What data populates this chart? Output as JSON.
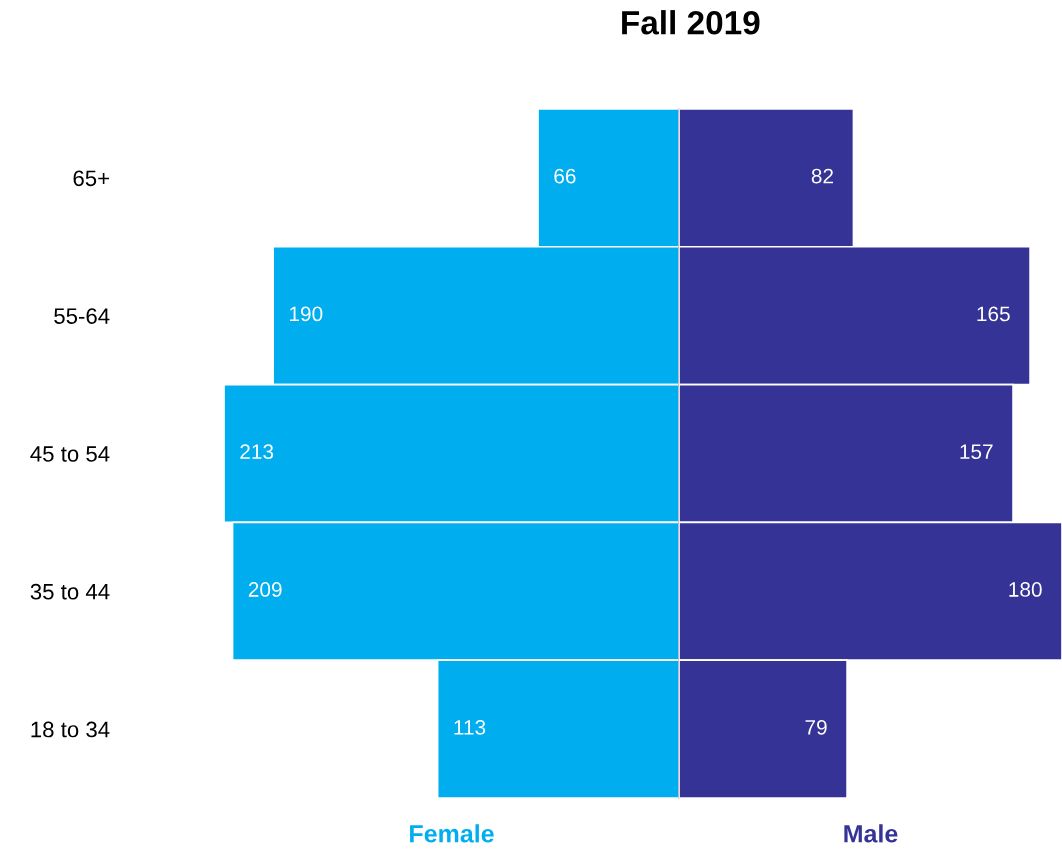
{
  "chart_data": [
    {
      "type": "bar",
      "orientation": "horizontal",
      "title": "Fall 2019",
      "categories": [
        "65+",
        "55-64",
        "45 to 54",
        "35 to 44",
        "18 to 34"
      ],
      "tick_labels": "y",
      "data_labels": true,
      "grid": false,
      "legend": false,
      "series": [
        {
          "name": "Female",
          "color": "#00aeef",
          "values": [
            66,
            190,
            213,
            209,
            113
          ]
        }
      ]
    },
    {
      "type": "bar",
      "orientation": "horizontal",
      "tick_labels": false,
      "data_labels": true,
      "grid": false,
      "legend": false,
      "series": [
        {
          "name": "Male",
          "color": "#353395",
          "values": [
            82,
            165,
            157,
            180,
            79
          ]
        }
      ]
    }
  ]
}
